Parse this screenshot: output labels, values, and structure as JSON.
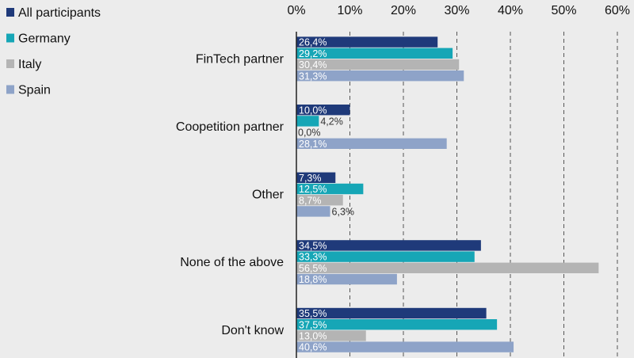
{
  "chart_data": {
    "type": "bar",
    "orientation": "horizontal",
    "categories": [
      "FinTech partner",
      "Coopetition partner",
      "Other",
      "None of the above",
      "Don't know"
    ],
    "series": [
      {
        "name": "All participants",
        "color": "#1f3a7a",
        "values": [
          26.4,
          10.0,
          7.3,
          34.5,
          35.5
        ],
        "labels": [
          "26,4%",
          "10,0%",
          "7,3%",
          "34,5%",
          "35,5%"
        ]
      },
      {
        "name": "Germany",
        "color": "#16a6b6",
        "values": [
          29.2,
          4.2,
          12.5,
          33.3,
          37.5
        ],
        "labels": [
          "29,2%",
          "4,2%",
          "12,5%",
          "33,3%",
          "37,5%"
        ]
      },
      {
        "name": "Italy",
        "color": "#b4b4b4",
        "values": [
          30.4,
          0.0,
          8.7,
          56.5,
          13.0
        ],
        "labels": [
          "30,4%",
          "0,0%",
          "8,7%",
          "56,5%",
          "13,0%"
        ]
      },
      {
        "name": "Spain",
        "color": "#8ea3c8",
        "values": [
          31.3,
          28.1,
          6.3,
          18.8,
          40.6
        ],
        "labels": [
          "31,3%",
          "28,1%",
          "6,3%",
          "18,8%",
          "40,6%"
        ]
      }
    ],
    "xlim": [
      0,
      60
    ],
    "x_ticks": [
      0,
      10,
      20,
      30,
      40,
      50,
      60
    ],
    "x_tick_labels": [
      "0%",
      "10%",
      "20%",
      "30%",
      "40%",
      "50%",
      "60%"
    ],
    "grid": "vertical dashed",
    "legend_position": "top-left",
    "title": "",
    "xlabel": "",
    "ylabel": ""
  }
}
